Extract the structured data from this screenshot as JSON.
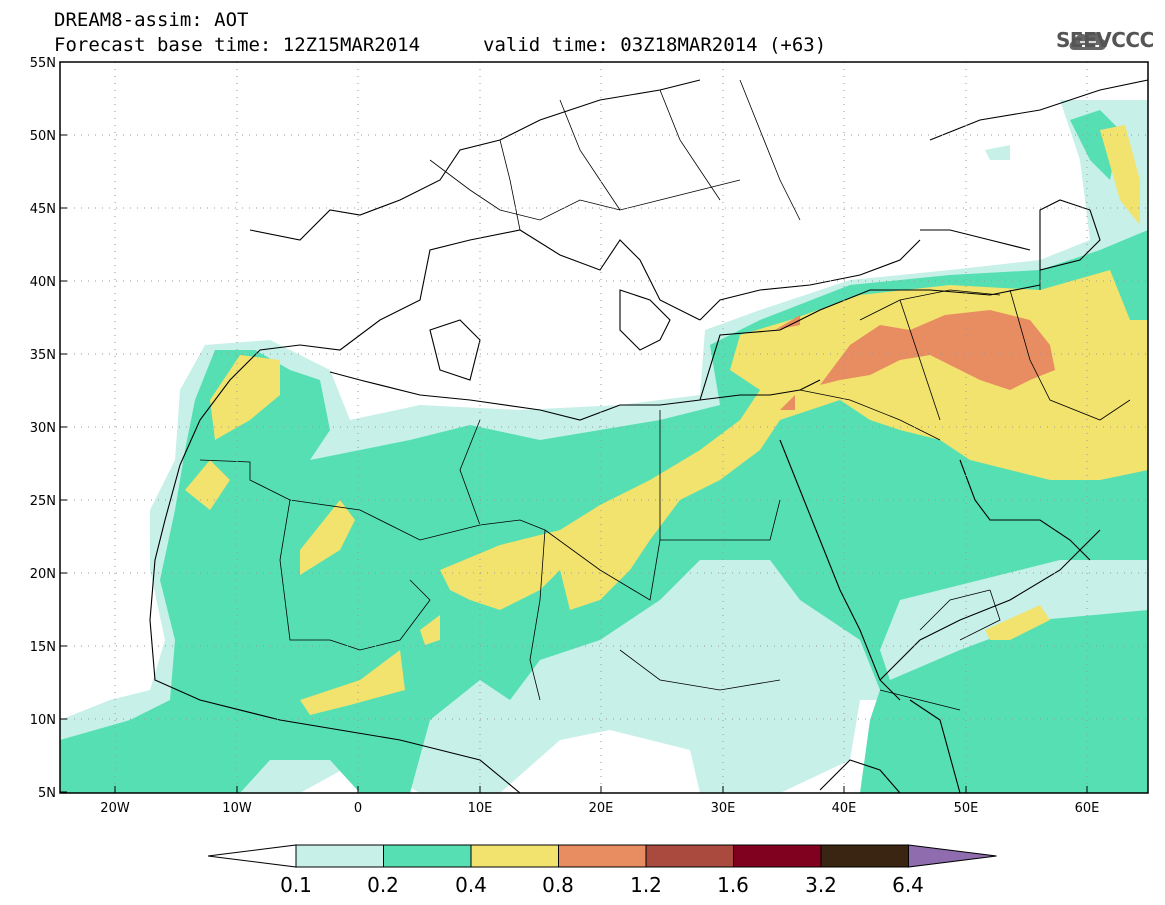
{
  "header": {
    "line1": "DREAM8-assim: AOT",
    "base_time": "Forecast base time: 12Z15MAR2014",
    "valid_time": "valid time: 03Z18MAR2014 (+63)"
  },
  "logo": {
    "text": "SEEVCCC",
    "icon": "cloud-icon"
  },
  "map": {
    "lat_ticks": [
      "55N",
      "50N",
      "45N",
      "40N",
      "35N",
      "30N",
      "25N",
      "20N",
      "15N",
      "10N",
      "5N"
    ],
    "lon_ticks": [
      "20W",
      "10W",
      "0",
      "10E",
      "20E",
      "30E",
      "40E",
      "50E",
      "60E"
    ],
    "lon_range": [
      -25,
      65
    ],
    "lat_range": [
      5,
      55
    ]
  },
  "colorbar": {
    "labels": [
      "0.1",
      "0.2",
      "0.4",
      "0.8",
      "1.2",
      "1.6",
      "3.2",
      "6.4"
    ],
    "colors": [
      "#ffffff",
      "#c6f0e8",
      "#55dfb2",
      "#f2e26e",
      "#e88c62",
      "#aa4a3e",
      "#800020",
      "#3a2512",
      "#8f6cae"
    ]
  }
}
